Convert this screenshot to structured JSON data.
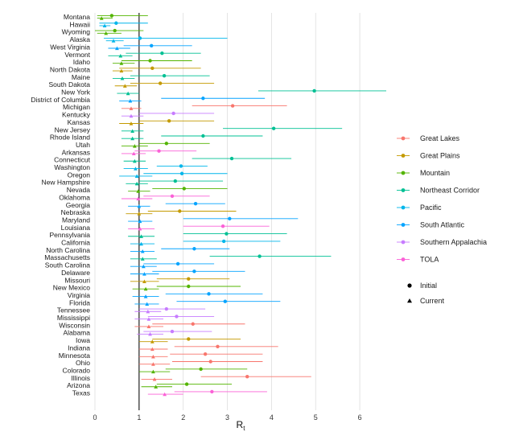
{
  "chart_data": {
    "type": "scatter",
    "subtype": "dumbbell-with-error-bars",
    "xlabel": "R",
    "xlabel_sub": "t",
    "xlim": [
      0,
      6.6
    ],
    "xticks": [
      0,
      1,
      2,
      3,
      4,
      5,
      6
    ],
    "reference_line_x": 1,
    "grid": "vertical",
    "legend_position": "right",
    "region_legend": [
      {
        "name": "Great Lakes",
        "color": "#F8766D"
      },
      {
        "name": "Great Plains",
        "color": "#C49A00"
      },
      {
        "name": "Mountain",
        "color": "#53B400"
      },
      {
        "name": "Northeast Corridor",
        "color": "#00C094"
      },
      {
        "name": "Pacific",
        "color": "#00B6EB"
      },
      {
        "name": "South Atlantic",
        "color": "#06A4FF"
      },
      {
        "name": "Southern Appalachia",
        "color": "#C77CFF"
      },
      {
        "name": "TOLA",
        "color": "#FB61D7"
      }
    ],
    "shape_legend": [
      {
        "name": "Initial",
        "shape": "circle"
      },
      {
        "name": "Current",
        "shape": "triangle"
      }
    ],
    "states": [
      {
        "name": "Montana",
        "region": "Mountain",
        "initial": 0.38,
        "initial_ci": [
          0.05,
          1.2
        ],
        "current": 0.15,
        "current_ci": [
          0.05,
          0.4
        ]
      },
      {
        "name": "Hawaii",
        "region": "Pacific",
        "initial": 0.48,
        "initial_ci": [
          0.1,
          1.2
        ],
        "current": 0.22,
        "current_ci": [
          0.1,
          0.35
        ]
      },
      {
        "name": "Wyoming",
        "region": "Mountain",
        "initial": 0.45,
        "initial_ci": [
          0.0,
          1.1
        ],
        "current": 0.25,
        "current_ci": [
          0.05,
          0.6
        ]
      },
      {
        "name": "Alaska",
        "region": "Pacific",
        "initial": 1.02,
        "initial_ci": [
          0.2,
          3.0
        ],
        "current": 0.42,
        "current_ci": [
          0.25,
          0.65
        ]
      },
      {
        "name": "West Virginia",
        "region": "South Atlantic",
        "initial": 1.28,
        "initial_ci": [
          0.65,
          2.2
        ],
        "current": 0.5,
        "current_ci": [
          0.3,
          0.8
        ]
      },
      {
        "name": "Vermont",
        "region": "Northeast Corridor",
        "initial": 1.52,
        "initial_ci": [
          0.7,
          2.4
        ],
        "current": 0.58,
        "current_ci": [
          0.3,
          0.85
        ]
      },
      {
        "name": "Idaho",
        "region": "Mountain",
        "initial": 1.25,
        "initial_ci": [
          0.6,
          2.2
        ],
        "current": 0.6,
        "current_ci": [
          0.4,
          0.9
        ]
      },
      {
        "name": "North Dakota",
        "region": "Great Plains",
        "initial": 1.3,
        "initial_ci": [
          0.55,
          2.4
        ],
        "current": 0.6,
        "current_ci": [
          0.4,
          0.85
        ]
      },
      {
        "name": "Maine",
        "region": "Northeast Corridor",
        "initial": 1.57,
        "initial_ci": [
          0.8,
          2.6
        ],
        "current": 0.62,
        "current_ci": [
          0.4,
          0.9
        ]
      },
      {
        "name": "South Dakota",
        "region": "Great Plains",
        "initial": 1.48,
        "initial_ci": [
          0.8,
          2.7
        ],
        "current": 0.68,
        "current_ci": [
          0.45,
          0.95
        ]
      },
      {
        "name": "New York",
        "region": "Northeast Corridor",
        "initial": 4.97,
        "initial_ci": [
          3.7,
          6.6
        ],
        "current": 0.75,
        "current_ci": [
          0.5,
          1.0
        ]
      },
      {
        "name": "District of Columbia",
        "region": "South Atlantic",
        "initial": 2.45,
        "initial_ci": [
          1.5,
          3.85
        ],
        "current": 0.8,
        "current_ci": [
          0.55,
          1.05
        ]
      },
      {
        "name": "Michigan",
        "region": "Great Lakes",
        "initial": 3.12,
        "initial_ci": [
          2.2,
          4.35
        ],
        "current": 0.82,
        "current_ci": [
          0.6,
          1.05
        ]
      },
      {
        "name": "Kentucky",
        "region": "Southern Appalachia",
        "initial": 1.78,
        "initial_ci": [
          1.0,
          2.7
        ],
        "current": 0.82,
        "current_ci": [
          0.6,
          1.1
        ]
      },
      {
        "name": "Kansas",
        "region": "Great Plains",
        "initial": 1.68,
        "initial_ci": [
          1.0,
          2.7
        ],
        "current": 0.82,
        "current_ci": [
          0.55,
          1.1
        ]
      },
      {
        "name": "New Jersey",
        "region": "Northeast Corridor",
        "initial": 4.05,
        "initial_ci": [
          2.9,
          5.6
        ],
        "current": 0.85,
        "current_ci": [
          0.6,
          1.1
        ]
      },
      {
        "name": "Rhode Island",
        "region": "Northeast Corridor",
        "initial": 2.45,
        "initial_ci": [
          1.5,
          3.8
        ],
        "current": 0.85,
        "current_ci": [
          0.6,
          1.1
        ]
      },
      {
        "name": "Utah",
        "region": "Mountain",
        "initial": 1.62,
        "initial_ci": [
          1.0,
          2.6
        ],
        "current": 0.9,
        "current_ci": [
          0.6,
          1.2
        ]
      },
      {
        "name": "Arkansas",
        "region": "TOLA",
        "initial": 1.45,
        "initial_ci": [
          0.9,
          2.3
        ],
        "current": 0.88,
        "current_ci": [
          0.6,
          1.15
        ]
      },
      {
        "name": "Connecticut",
        "region": "Northeast Corridor",
        "initial": 3.1,
        "initial_ci": [
          2.2,
          4.45
        ],
        "current": 0.9,
        "current_ci": [
          0.65,
          1.15
        ]
      },
      {
        "name": "Washington",
        "region": "Pacific",
        "initial": 1.95,
        "initial_ci": [
          1.4,
          2.55
        ],
        "current": 0.92,
        "current_ci": [
          0.65,
          1.2
        ]
      },
      {
        "name": "Oregon",
        "region": "Pacific",
        "initial": 1.97,
        "initial_ci": [
          1.1,
          3.0
        ],
        "current": 0.95,
        "current_ci": [
          0.55,
          1.3
        ]
      },
      {
        "name": "New Hampshire",
        "region": "Northeast Corridor",
        "initial": 1.82,
        "initial_ci": [
          1.0,
          2.9
        ],
        "current": 0.95,
        "current_ci": [
          0.7,
          1.2
        ]
      },
      {
        "name": "Nevada",
        "region": "Mountain",
        "initial": 2.02,
        "initial_ci": [
          1.3,
          3.0
        ],
        "current": 0.98,
        "current_ci": [
          0.75,
          1.25
        ]
      },
      {
        "name": "Oklahoma",
        "region": "TOLA",
        "initial": 1.75,
        "initial_ci": [
          1.1,
          2.6
        ],
        "current": 0.98,
        "current_ci": [
          0.6,
          1.3
        ]
      },
      {
        "name": "Georgia",
        "region": "South Atlantic",
        "initial": 2.28,
        "initial_ci": [
          1.6,
          2.95
        ],
        "current": 1.0,
        "current_ci": [
          0.75,
          1.25
        ]
      },
      {
        "name": "Nebraska",
        "region": "Great Plains",
        "initial": 1.92,
        "initial_ci": [
          1.2,
          3.2
        ],
        "current": 1.0,
        "current_ci": [
          0.7,
          1.3
        ]
      },
      {
        "name": "Maryland",
        "region": "South Atlantic",
        "initial": 3.05,
        "initial_ci": [
          2.0,
          4.6
        ],
        "current": 1.02,
        "current_ci": [
          0.75,
          1.3
        ]
      },
      {
        "name": "Louisiana",
        "region": "TOLA",
        "initial": 2.9,
        "initial_ci": [
          2.0,
          3.95
        ],
        "current": 1.02,
        "current_ci": [
          0.75,
          1.35
        ]
      },
      {
        "name": "Pennsylvania",
        "region": "Northeast Corridor",
        "initial": 2.98,
        "initial_ci": [
          2.0,
          4.35
        ],
        "current": 1.05,
        "current_ci": [
          0.75,
          1.35
        ]
      },
      {
        "name": "California",
        "region": "Pacific",
        "initial": 2.92,
        "initial_ci": [
          2.0,
          4.2
        ],
        "current": 1.05,
        "current_ci": [
          0.8,
          1.35
        ]
      },
      {
        "name": "North Carolina",
        "region": "South Atlantic",
        "initial": 2.25,
        "initial_ci": [
          1.5,
          3.05
        ],
        "current": 1.08,
        "current_ci": [
          0.8,
          1.35
        ]
      },
      {
        "name": "Massachusetts",
        "region": "Northeast Corridor",
        "initial": 3.73,
        "initial_ci": [
          2.6,
          5.35
        ],
        "current": 1.08,
        "current_ci": [
          0.8,
          1.4
        ]
      },
      {
        "name": "South Carolina",
        "region": "South Atlantic",
        "initial": 1.88,
        "initial_ci": [
          1.1,
          2.7
        ],
        "current": 1.1,
        "current_ci": [
          0.8,
          1.4
        ]
      },
      {
        "name": "Delaware",
        "region": "South Atlantic",
        "initial": 2.25,
        "initial_ci": [
          1.3,
          3.4
        ],
        "current": 1.12,
        "current_ci": [
          0.8,
          1.45
        ]
      },
      {
        "name": "Missouri",
        "region": "Great Plains",
        "initial": 2.12,
        "initial_ci": [
          1.4,
          3.05
        ],
        "current": 1.12,
        "current_ci": [
          0.8,
          1.45
        ]
      },
      {
        "name": "New Mexico",
        "region": "Mountain",
        "initial": 2.12,
        "initial_ci": [
          1.4,
          3.3
        ],
        "current": 1.15,
        "current_ci": [
          0.85,
          1.45
        ]
      },
      {
        "name": "Virginia",
        "region": "South Atlantic",
        "initial": 2.58,
        "initial_ci": [
          1.6,
          3.8
        ],
        "current": 1.15,
        "current_ci": [
          0.85,
          1.45
        ]
      },
      {
        "name": "Florida",
        "region": "South Atlantic",
        "initial": 2.95,
        "initial_ci": [
          1.85,
          4.2
        ],
        "current": 1.18,
        "current_ci": [
          0.9,
          1.45
        ]
      },
      {
        "name": "Tennessee",
        "region": "Southern Appalachia",
        "initial": 1.62,
        "initial_ci": [
          1.0,
          2.5
        ],
        "current": 1.2,
        "current_ci": [
          0.9,
          1.5
        ]
      },
      {
        "name": "Mississippi",
        "region": "Southern Appalachia",
        "initial": 1.85,
        "initial_ci": [
          1.2,
          2.7
        ],
        "current": 1.22,
        "current_ci": [
          0.9,
          1.55
        ]
      },
      {
        "name": "Wisconsin",
        "region": "Great Lakes",
        "initial": 2.22,
        "initial_ci": [
          1.3,
          3.4
        ],
        "current": 1.22,
        "current_ci": [
          0.9,
          1.55
        ]
      },
      {
        "name": "Alabama",
        "region": "Southern Appalachia",
        "initial": 1.75,
        "initial_ci": [
          1.1,
          2.65
        ],
        "current": 1.25,
        "current_ci": [
          0.95,
          1.55
        ]
      },
      {
        "name": "Iowa",
        "region": "Great Plains",
        "initial": 2.12,
        "initial_ci": [
          1.3,
          3.3
        ],
        "current": 1.3,
        "current_ci": [
          1.0,
          1.65
        ]
      },
      {
        "name": "Indiana",
        "region": "Great Lakes",
        "initial": 2.78,
        "initial_ci": [
          1.8,
          4.15
        ],
        "current": 1.3,
        "current_ci": [
          1.0,
          1.65
        ]
      },
      {
        "name": "Minnesota",
        "region": "Great Lakes",
        "initial": 2.5,
        "initial_ci": [
          1.7,
          3.8
        ],
        "current": 1.32,
        "current_ci": [
          1.0,
          1.65
        ]
      },
      {
        "name": "Ohio",
        "region": "Great Lakes",
        "initial": 2.62,
        "initial_ci": [
          1.75,
          3.8
        ],
        "current": 1.32,
        "current_ci": [
          1.0,
          1.7
        ]
      },
      {
        "name": "Colorado",
        "region": "Mountain",
        "initial": 2.4,
        "initial_ci": [
          1.6,
          3.45
        ],
        "current": 1.32,
        "current_ci": [
          1.0,
          1.7
        ]
      },
      {
        "name": "Illinois",
        "region": "Great Lakes",
        "initial": 3.45,
        "initial_ci": [
          2.4,
          4.9
        ],
        "current": 1.35,
        "current_ci": [
          1.05,
          1.75
        ]
      },
      {
        "name": "Arizona",
        "region": "Mountain",
        "initial": 2.08,
        "initial_ci": [
          1.4,
          3.1
        ],
        "current": 1.38,
        "current_ci": [
          1.05,
          1.75
        ]
      },
      {
        "name": "Texas",
        "region": "TOLA",
        "initial": 2.65,
        "initial_ci": [
          1.8,
          3.9
        ],
        "current": 1.58,
        "current_ci": [
          1.2,
          2.0
        ]
      }
    ]
  }
}
